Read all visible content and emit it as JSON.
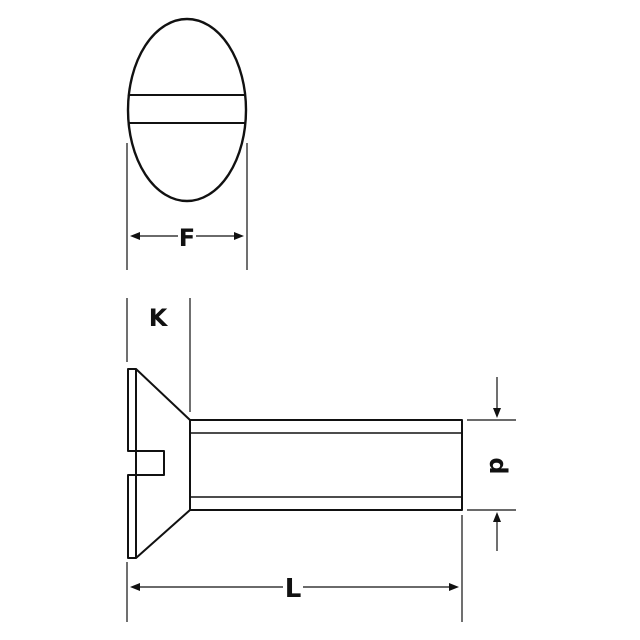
{
  "labels": {
    "f": "F",
    "k": "K",
    "d": "d",
    "l": "L"
  },
  "colors": {
    "stroke": "#111111",
    "background": "#ffffff"
  }
}
